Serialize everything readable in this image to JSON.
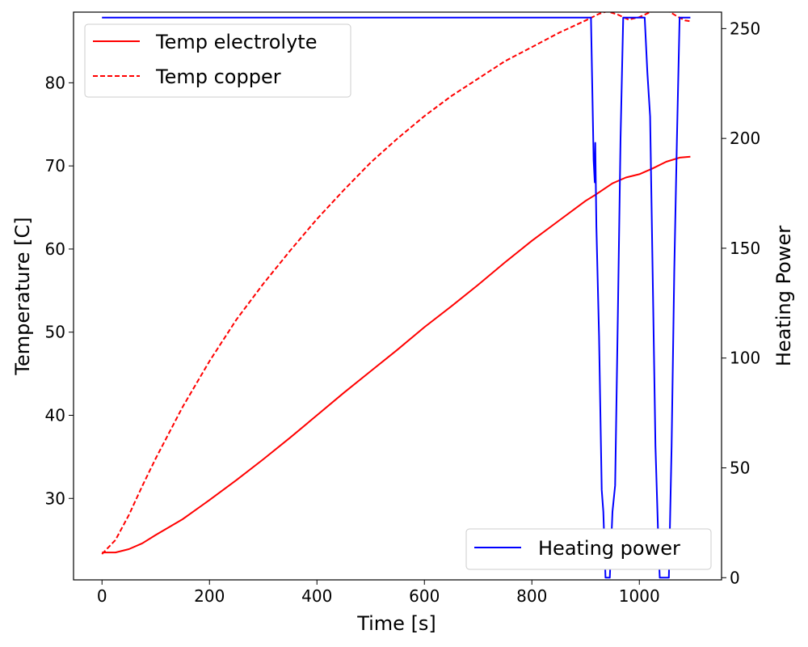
{
  "chart_data": {
    "type": "line",
    "title": "",
    "xlabel": "Time [s]",
    "ylabel": "Temperature [C]",
    "y2label": "Heating Power",
    "xlim": [
      -53,
      1153
    ],
    "ylim": [
      20.2,
      88.5
    ],
    "y2lim": [
      0,
      255
    ],
    "y2lim_view": [
      -1,
      257.5
    ],
    "grid": false,
    "x_ticks": [
      0,
      200,
      400,
      600,
      800,
      1000
    ],
    "y_ticks": [
      30,
      40,
      50,
      60,
      70,
      80
    ],
    "y2_ticks": [
      0,
      50,
      100,
      150,
      200,
      250
    ],
    "colors": {
      "electrolyte": "#ff0000",
      "copper": "#ff0000",
      "power": "#0000ff"
    },
    "legend_left": {
      "position": "upper-left",
      "entries": [
        "Temp electrolyte",
        "Temp copper"
      ]
    },
    "legend_right": {
      "position": "lower-right",
      "entries": [
        "Heating power"
      ]
    },
    "series": [
      {
        "name": "Temp electrolyte",
        "axis": "left",
        "style": "solid",
        "x": [
          0,
          25,
          50,
          75,
          100,
          150,
          200,
          250,
          300,
          350,
          400,
          450,
          500,
          550,
          600,
          650,
          700,
          750,
          800,
          850,
          900,
          920,
          950,
          975,
          1000,
          1025,
          1050,
          1075,
          1095
        ],
        "y": [
          23.5,
          23.5,
          23.9,
          24.6,
          25.6,
          27.5,
          29.8,
          32.2,
          34.7,
          37.3,
          40.0,
          42.7,
          45.3,
          47.9,
          50.6,
          53.1,
          55.7,
          58.4,
          61.0,
          63.4,
          65.8,
          66.6,
          67.9,
          68.6,
          69.0,
          69.7,
          70.5,
          71.0,
          71.1
        ]
      },
      {
        "name": "Temp copper",
        "axis": "left",
        "style": "dashed",
        "x": [
          0,
          25,
          50,
          75,
          100,
          150,
          200,
          250,
          300,
          350,
          400,
          450,
          500,
          550,
          600,
          650,
          700,
          750,
          800,
          850,
          900,
          925,
          940,
          960,
          980,
          1000,
          1020,
          1040,
          1055,
          1070,
          1085,
          1095
        ],
        "y": [
          23.3,
          25.0,
          28.0,
          31.5,
          34.8,
          41.0,
          46.5,
          51.5,
          55.8,
          59.8,
          63.6,
          67.1,
          70.4,
          73.3,
          76.0,
          78.4,
          80.5,
          82.6,
          84.3,
          86.0,
          87.5,
          88.3,
          88.6,
          88.2,
          87.6,
          87.9,
          88.5,
          88.8,
          88.6,
          88.0,
          87.5,
          87.4
        ]
      },
      {
        "name": "Heating power",
        "axis": "right",
        "style": "solid",
        "x": [
          0,
          910,
          915,
          917,
          918,
          920,
          925,
          930,
          933,
          937,
          945,
          950,
          955,
          960,
          965,
          970,
          1010,
          1015,
          1020,
          1030,
          1035,
          1038,
          1042,
          1055,
          1060,
          1065,
          1070,
          1075,
          1095
        ],
        "y": [
          255,
          255,
          190,
          180,
          198,
          160,
          110,
          40,
          30,
          0,
          0,
          30,
          42,
          120,
          200,
          255,
          255,
          230,
          210,
          60,
          20,
          0,
          0,
          0,
          60,
          140,
          200,
          255,
          255
        ]
      }
    ]
  }
}
